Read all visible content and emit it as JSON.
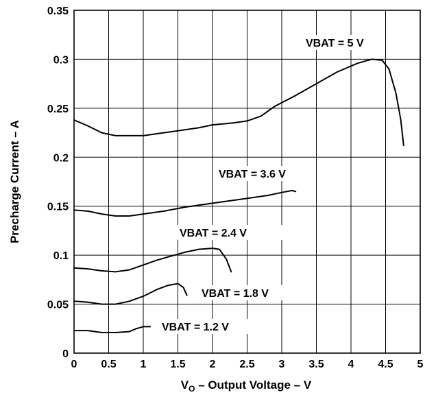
{
  "chart_data": {
    "type": "line",
    "xlabel_main": "V",
    "xlabel_sub": "O",
    "xlabel_rest": " – Output Voltage – V",
    "ylabel": "Precharge Current – A",
    "xlim": [
      0,
      5
    ],
    "ylim": [
      0,
      0.35
    ],
    "x_ticks": [
      "0",
      "0.5",
      "1",
      "1.5",
      "2",
      "2.5",
      "3",
      "3.5",
      "4",
      "4.5",
      "5"
    ],
    "y_ticks": [
      "0",
      "0.05",
      "0.1",
      "0.15",
      "0.2",
      "0.25",
      "0.3",
      "0.35"
    ],
    "grid": true,
    "series": [
      {
        "name": "VBAT = 5 V",
        "points": [
          [
            0,
            0.238
          ],
          [
            0.2,
            0.232
          ],
          [
            0.4,
            0.225
          ],
          [
            0.6,
            0.222
          ],
          [
            0.8,
            0.222
          ],
          [
            1.0,
            0.222
          ],
          [
            1.2,
            0.224
          ],
          [
            1.5,
            0.227
          ],
          [
            1.8,
            0.23
          ],
          [
            2.0,
            0.233
          ],
          [
            2.3,
            0.235
          ],
          [
            2.5,
            0.237
          ],
          [
            2.7,
            0.242
          ],
          [
            2.9,
            0.252
          ],
          [
            3.2,
            0.263
          ],
          [
            3.5,
            0.275
          ],
          [
            3.8,
            0.287
          ],
          [
            4.1,
            0.296
          ],
          [
            4.3,
            0.3
          ],
          [
            4.45,
            0.299
          ],
          [
            4.55,
            0.29
          ],
          [
            4.65,
            0.265
          ],
          [
            4.72,
            0.238
          ],
          [
            4.76,
            0.212
          ]
        ]
      },
      {
        "name": "VBAT = 3.6 V",
        "points": [
          [
            0,
            0.146
          ],
          [
            0.2,
            0.145
          ],
          [
            0.4,
            0.142
          ],
          [
            0.6,
            0.14
          ],
          [
            0.8,
            0.14
          ],
          [
            1.0,
            0.142
          ],
          [
            1.3,
            0.145
          ],
          [
            1.6,
            0.149
          ],
          [
            2.0,
            0.153
          ],
          [
            2.4,
            0.157
          ],
          [
            2.8,
            0.161
          ],
          [
            3.0,
            0.164
          ],
          [
            3.15,
            0.166
          ],
          [
            3.2,
            0.165
          ]
        ]
      },
      {
        "name": "VBAT = 2.4 V",
        "points": [
          [
            0,
            0.087
          ],
          [
            0.2,
            0.086
          ],
          [
            0.4,
            0.084
          ],
          [
            0.6,
            0.083
          ],
          [
            0.8,
            0.085
          ],
          [
            1.0,
            0.09
          ],
          [
            1.2,
            0.095
          ],
          [
            1.4,
            0.099
          ],
          [
            1.6,
            0.103
          ],
          [
            1.8,
            0.106
          ],
          [
            2.0,
            0.107
          ],
          [
            2.1,
            0.106
          ],
          [
            2.2,
            0.096
          ],
          [
            2.27,
            0.083
          ]
        ]
      },
      {
        "name": "VBAT = 1.8 V",
        "points": [
          [
            0,
            0.053
          ],
          [
            0.2,
            0.052
          ],
          [
            0.4,
            0.05
          ],
          [
            0.6,
            0.05
          ],
          [
            0.8,
            0.053
          ],
          [
            1.0,
            0.058
          ],
          [
            1.2,
            0.065
          ],
          [
            1.35,
            0.069
          ],
          [
            1.5,
            0.071
          ],
          [
            1.58,
            0.067
          ],
          [
            1.63,
            0.059
          ]
        ]
      },
      {
        "name": "VBAT = 1.2 V",
        "points": [
          [
            0,
            0.023
          ],
          [
            0.2,
            0.023
          ],
          [
            0.4,
            0.021
          ],
          [
            0.6,
            0.021
          ],
          [
            0.8,
            0.022
          ],
          [
            0.9,
            0.025
          ],
          [
            1.0,
            0.027
          ],
          [
            1.1,
            0.027
          ]
        ]
      }
    ]
  }
}
